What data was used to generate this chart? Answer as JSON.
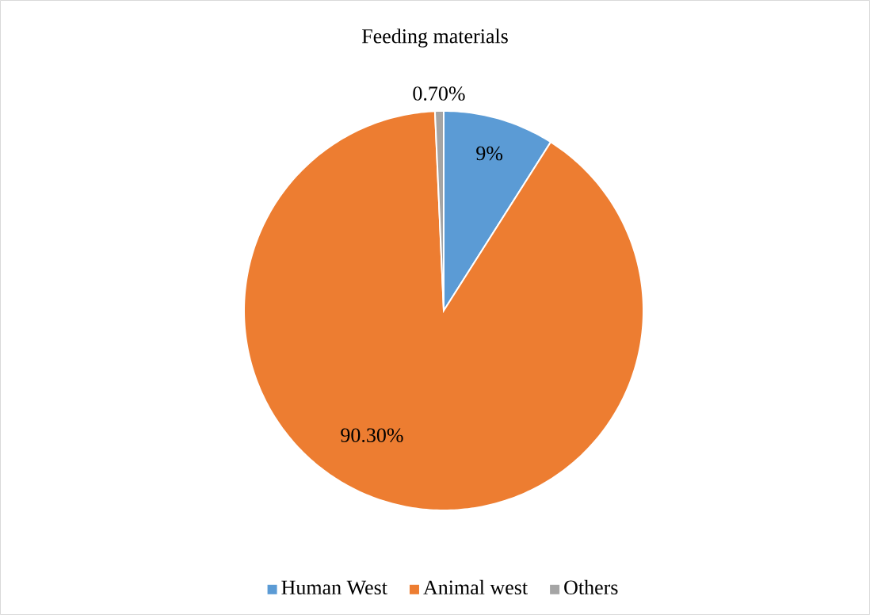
{
  "chart_data": {
    "type": "pie",
    "title": "Feeding materials",
    "categories": [
      "Human West",
      "Animal west",
      "Others"
    ],
    "values": [
      9,
      90.3,
      0.7
    ],
    "value_labels": [
      "9%",
      "90.30%",
      "0.70%"
    ],
    "colors": [
      "#5b9bd5",
      "#ed7d31",
      "#a5a5a5"
    ],
    "legend": "bottom"
  }
}
